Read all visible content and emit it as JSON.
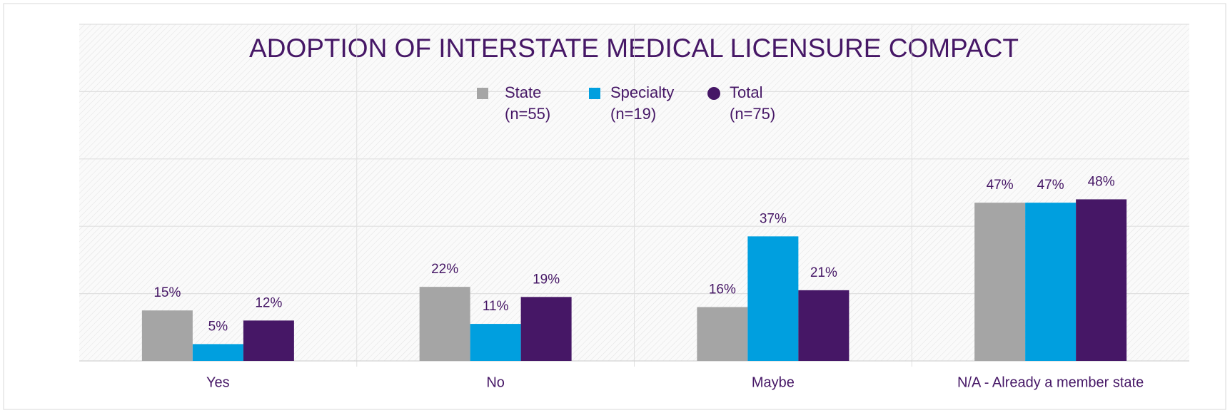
{
  "chart_data": {
    "type": "bar",
    "title": "ADOPTION OF INTERSTATE MEDICAL LICENSURE COMPACT",
    "categories": [
      "Yes",
      "No",
      "Maybe",
      "N/A - Already a member state"
    ],
    "series": [
      {
        "name": "State\n(n=55)",
        "color": "#a5a5a5",
        "values": [
          15,
          22,
          16,
          47
        ],
        "value_labels": [
          "15%",
          "22%",
          "16%",
          "47%"
        ]
      },
      {
        "name": "Specialty\n(n=19)",
        "color": "#009fdf",
        "values": [
          5,
          11,
          37,
          47
        ],
        "value_labels": [
          "5%",
          "11%",
          "37%",
          "47%"
        ]
      },
      {
        "name": "Total\n(n=75)",
        "color": "#461766",
        "values": [
          12,
          19,
          21,
          48
        ],
        "value_labels": [
          "12%",
          "19%",
          "21%",
          "48%"
        ]
      }
    ],
    "ylim": [
      0,
      100
    ],
    "yticks": [
      0,
      20,
      40,
      60,
      80,
      100
    ],
    "grid": true
  }
}
